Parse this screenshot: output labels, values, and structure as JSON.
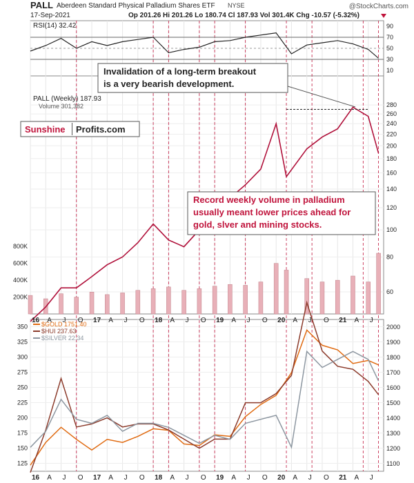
{
  "header": {
    "symbol": "PALL",
    "name": "Aberdeen Standard Physical Palladium Shares ETF",
    "exchange": "NYSE",
    "watermark": "@StockCharts.com",
    "date": "17-Sep-2021",
    "quote": "Op 201.26 Hi 201.26 Lo 180.74 Cl 187.93 Vol 301.4K Chg -10.57 (-5.32%)",
    "chg_marker_color": "#c0143c"
  },
  "brand": {
    "part1": "Sunshine",
    "part2": "Profits.com",
    "part1_color": "#c0143c",
    "part2_color": "#222222"
  },
  "annotations": {
    "breakout_line1": "Invalidation of a long-term breakout",
    "breakout_line2": "is a very bearish development.",
    "volume_line1": "Record weekly volume in palladium",
    "volume_line2": "usually meant lower prices ahead for",
    "volume_line3": "gold, slver and mining stocks.",
    "volume_color": "#c0143c"
  },
  "chart_data": [
    {
      "type": "line",
      "title": "RSI(14) 32.42",
      "panel": "rsi",
      "ylim": [
        0,
        100
      ],
      "ticks": [
        10,
        30,
        50,
        70,
        90
      ],
      "reference_lines": [
        30,
        50,
        70
      ],
      "x": [
        "2016-01",
        "2016-04",
        "2016-07",
        "2016-10",
        "2017-01",
        "2017-04",
        "2017-07",
        "2017-10",
        "2018-01",
        "2018-04",
        "2018-07",
        "2018-10",
        "2019-01",
        "2019-04",
        "2019-07",
        "2019-10",
        "2020-01",
        "2020-04",
        "2020-07",
        "2020-10",
        "2021-01",
        "2021-04",
        "2021-07",
        "2021-09"
      ],
      "values": [
        45,
        55,
        68,
        50,
        62,
        55,
        62,
        66,
        70,
        42,
        48,
        52,
        62,
        64,
        70,
        74,
        78,
        40,
        56,
        60,
        64,
        58,
        48,
        32
      ],
      "color": "#222222"
    },
    {
      "type": "line",
      "title": "PALL (Weekly) 187.93",
      "volume_label": "Volume 301,382",
      "panel": "price",
      "scale": "log",
      "right_ticks": [
        60,
        80,
        100,
        120,
        140,
        160,
        180,
        200,
        220,
        240,
        260,
        280
      ],
      "left_ticks": [
        "200K",
        "400K",
        "600K",
        "800K"
      ],
      "x": [
        "2016-01",
        "2016-04",
        "2016-07",
        "2016-10",
        "2017-01",
        "2017-04",
        "2017-07",
        "2017-10",
        "2018-01",
        "2018-04",
        "2018-07",
        "2018-10",
        "2019-01",
        "2019-04",
        "2019-07",
        "2019-10",
        "2020-01",
        "2020-03",
        "2020-07",
        "2020-10",
        "2021-01",
        "2021-04",
        "2021-07",
        "2021-09"
      ],
      "values": [
        47,
        53,
        62,
        62,
        68,
        75,
        80,
        90,
        105,
        92,
        87,
        100,
        125,
        130,
        145,
        165,
        240,
        155,
        195,
        215,
        230,
        275,
        255,
        188
      ],
      "breakout_level": 270,
      "volume_values": [
        220,
        180,
        240,
        200,
        260,
        230,
        250,
        280,
        300,
        320,
        280,
        300,
        330,
        350,
        340,
        380,
        600,
        520,
        420,
        380,
        400,
        450,
        380,
        720
      ],
      "line_color": "#b0103a"
    },
    {
      "type": "line",
      "panel": "metals",
      "right_ticks": [
        1100,
        1200,
        1300,
        1400,
        1500,
        1600,
        1700,
        1800,
        1900,
        2000
      ],
      "left_ticks": [
        125,
        150,
        175,
        200,
        225,
        250,
        275,
        300,
        325,
        350
      ],
      "x": [
        "2016-01",
        "2016-04",
        "2016-07",
        "2016-10",
        "2017-01",
        "2017-04",
        "2017-07",
        "2017-10",
        "2018-01",
        "2018-04",
        "2018-07",
        "2018-10",
        "2019-01",
        "2019-04",
        "2019-07",
        "2019-10",
        "2020-01",
        "2020-04",
        "2020-07",
        "2020-10",
        "2021-01",
        "2021-04",
        "2021-07",
        "2021-09"
      ],
      "series": [
        {
          "name": "$GOLD 1751.40",
          "color": "#e06a10",
          "values": [
            1090,
            1240,
            1340,
            1260,
            1190,
            1260,
            1240,
            1280,
            1330,
            1320,
            1230,
            1220,
            1290,
            1280,
            1410,
            1490,
            1550,
            1700,
            1980,
            1880,
            1850,
            1760,
            1780,
            1751
          ]
        },
        {
          "name": "$HUI 237.63",
          "color": "#8b3a2a",
          "values": [
            110,
            180,
            265,
            185,
            190,
            200,
            185,
            190,
            190,
            180,
            165,
            150,
            165,
            165,
            225,
            225,
            240,
            270,
            390,
            310,
            285,
            280,
            260,
            238
          ]
        },
        {
          "name": "$SILVER 22.34",
          "color": "#8c96a0",
          "values": [
            14,
            16,
            20,
            17.5,
            17,
            18,
            16,
            17,
            17,
            16.5,
            15.5,
            14.5,
            15.5,
            15,
            17,
            17.5,
            18,
            14,
            26,
            24,
            25,
            26,
            25,
            22.3
          ]
        }
      ]
    }
  ],
  "x_axis_labels": [
    "16",
    "A",
    "J",
    "O",
    "17",
    "A",
    "J",
    "O",
    "18",
    "A",
    "J",
    "O",
    "19",
    "A",
    "J",
    "O",
    "20",
    "A",
    "J",
    "O",
    "21",
    "A",
    "J"
  ]
}
